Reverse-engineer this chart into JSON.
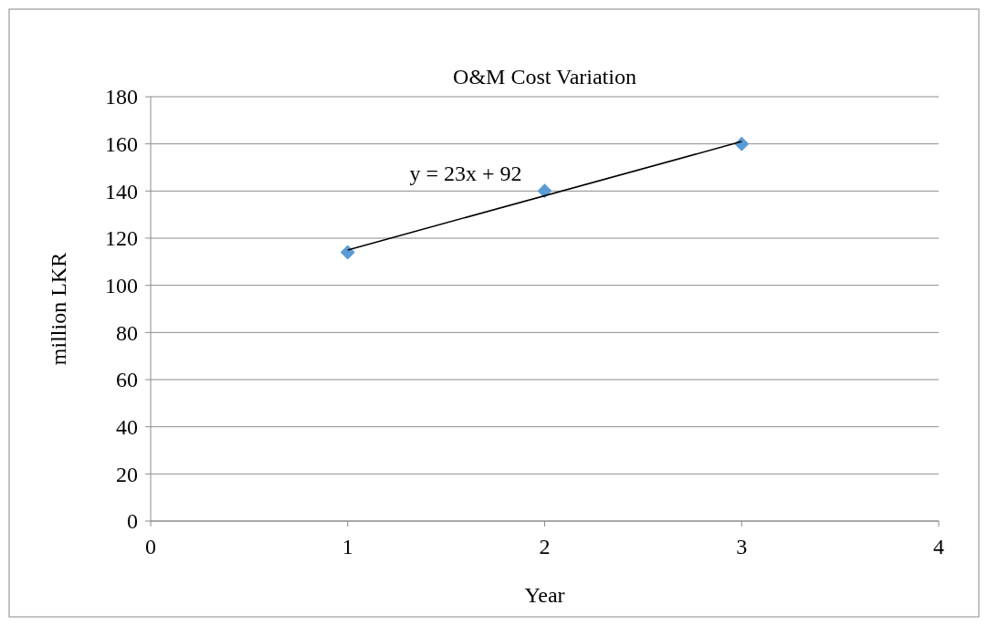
{
  "chart_data": {
    "type": "scatter",
    "title": "O&M Cost Variation",
    "xlabel": "Year",
    "ylabel": "million LKR",
    "xlim": [
      0,
      4
    ],
    "xticks": [
      0,
      1,
      2,
      3,
      4
    ],
    "ylim": [
      0,
      180
    ],
    "yticks": [
      0,
      20,
      40,
      60,
      80,
      100,
      120,
      140,
      160,
      180
    ],
    "grid": "y",
    "series": [
      {
        "color": "#5b9bd5",
        "marker": "diamond",
        "x": [
          1,
          2,
          3
        ],
        "values": [
          114,
          140,
          160
        ]
      },
      {
        "type": "line",
        "color": "#000000",
        "marker": "none",
        "x": [
          1,
          3
        ],
        "values": [
          115,
          161
        ]
      }
    ],
    "annotations": [
      "y = 23x + 92"
    ]
  }
}
